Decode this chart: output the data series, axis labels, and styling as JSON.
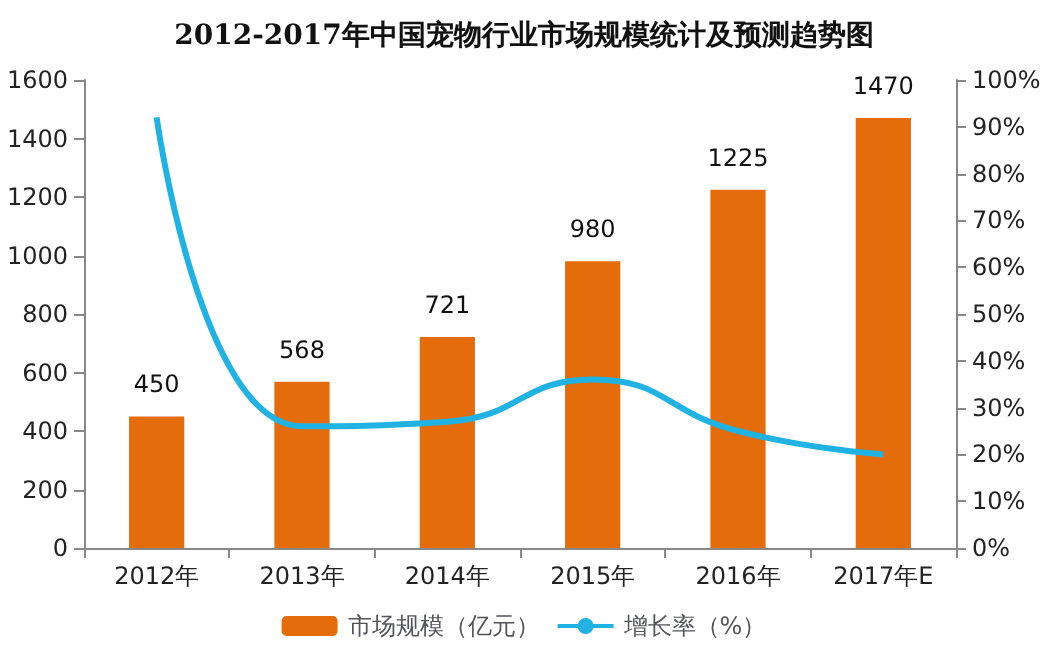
{
  "chart_data": {
    "type": "bar",
    "title": "2012-2017年中国宠物行业市场规模统计及预测趋势图",
    "categories": [
      "2012年",
      "2013年",
      "2014年",
      "2015年",
      "2016年",
      "2017年E"
    ],
    "series": [
      {
        "name": "市场规模（亿元）",
        "color": "#e46c0a",
        "values": [
          450,
          568,
          721,
          980,
          1225,
          1470
        ],
        "value_labels": [
          "450",
          "568",
          "721",
          "980",
          "1225",
          "1470"
        ]
      },
      {
        "name": "增长率（%）",
        "type": "line",
        "axis": "y2",
        "color": "#1fb2e3",
        "values": [
          92,
          26,
          27,
          36,
          25,
          20
        ]
      }
    ],
    "ylim": [
      0,
      1600
    ],
    "yticks": [
      0,
      200,
      400,
      600,
      800,
      1000,
      1200,
      1400,
      1600
    ],
    "y2lim": [
      0,
      100
    ],
    "y2ticks": [
      {
        "value": 0,
        "label": "0%"
      },
      {
        "value": 10,
        "label": "10%"
      },
      {
        "value": 20,
        "label": "20%"
      },
      {
        "value": 30,
        "label": "30%"
      },
      {
        "value": 40,
        "label": "40%"
      },
      {
        "value": 50,
        "label": "50%"
      },
      {
        "value": 60,
        "label": "60%"
      },
      {
        "value": 70,
        "label": "70%"
      },
      {
        "value": 80,
        "label": "80%"
      },
      {
        "value": 90,
        "label": "90%"
      },
      {
        "value": 100,
        "label": "100%"
      }
    ],
    "grid": false,
    "legend": "bottom",
    "marker": "none"
  }
}
